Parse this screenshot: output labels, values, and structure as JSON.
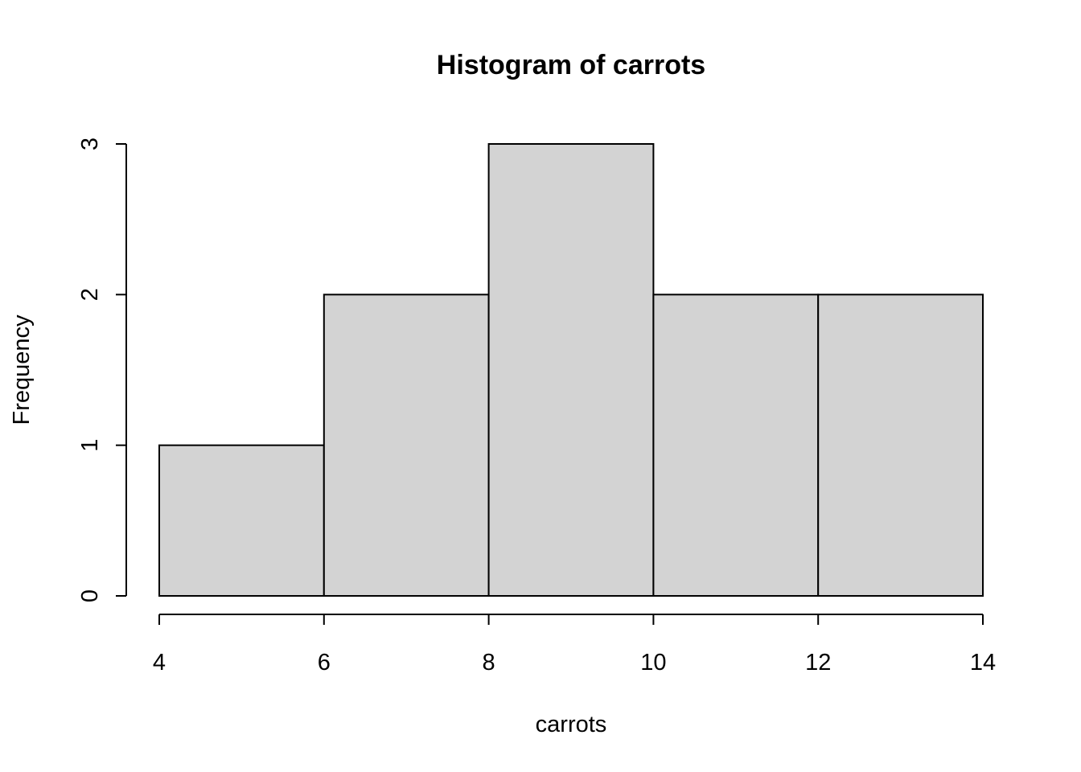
{
  "chart_data": {
    "type": "bar",
    "title": "Histogram of carrots",
    "xlabel": "carrots",
    "ylabel": "Frequency",
    "bins": [
      {
        "from": 4,
        "to": 6,
        "count": 1
      },
      {
        "from": 6,
        "to": 8,
        "count": 2
      },
      {
        "from": 8,
        "to": 10,
        "count": 3
      },
      {
        "from": 10,
        "to": 12,
        "count": 2
      },
      {
        "from": 12,
        "to": 14,
        "count": 2
      }
    ],
    "categories": [
      "4-6",
      "6-8",
      "8-10",
      "10-12",
      "12-14"
    ],
    "values": [
      1,
      2,
      3,
      2,
      2
    ],
    "xticks": [
      4,
      6,
      8,
      10,
      12,
      14
    ],
    "yticks": [
      0,
      1,
      2,
      3
    ],
    "xlim": [
      4,
      14
    ],
    "ylim": [
      0,
      3
    ],
    "grid": false,
    "legend": "none",
    "bar_color": "#d3d3d3",
    "edge_color": "#000000"
  }
}
